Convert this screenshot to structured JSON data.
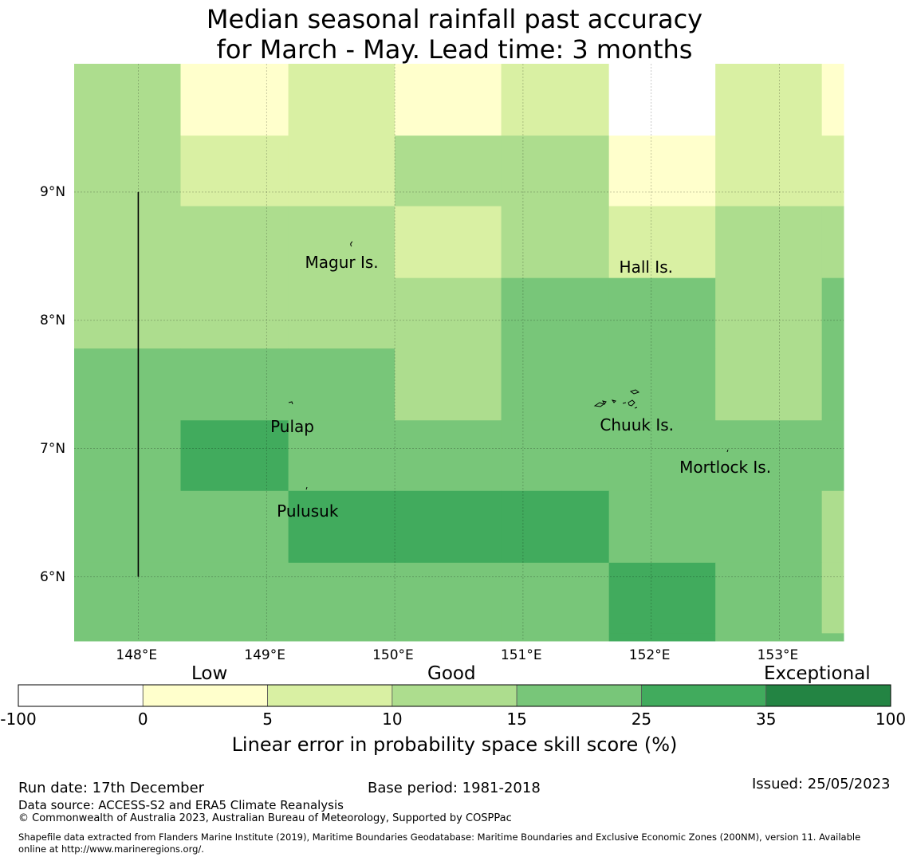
{
  "title": {
    "line1": "Median seasonal rainfall past accuracy",
    "line2": "for March - May. Lead time: 3 months"
  },
  "map": {
    "lon_range": [
      147.5,
      153.5
    ],
    "lat_range": [
      5.5,
      10.0
    ],
    "lon_ticks": [
      {
        "value": 148,
        "label": "148°E"
      },
      {
        "value": 149,
        "label": "149°E"
      },
      {
        "value": 150,
        "label": "150°E"
      },
      {
        "value": 151,
        "label": "151°E"
      },
      {
        "value": 152,
        "label": "152°E"
      },
      {
        "value": 153,
        "label": "153°E"
      }
    ],
    "lat_ticks": [
      {
        "value": 9,
        "label": "9°N"
      },
      {
        "value": 8,
        "label": "8°N"
      },
      {
        "value": 7,
        "label": "7°N"
      },
      {
        "value": 6,
        "label": "6°N"
      }
    ],
    "cells": [
      {
        "lon0": 147.5,
        "lon1": 148.33,
        "lat0": 9.44,
        "lat1": 10.0,
        "cat": 3
      },
      {
        "lon0": 148.33,
        "lon1": 149.17,
        "lat0": 9.44,
        "lat1": 10.0,
        "cat": 1
      },
      {
        "lon0": 149.17,
        "lon1": 150.0,
        "lat0": 9.44,
        "lat1": 10.0,
        "cat": 2
      },
      {
        "lon0": 150.0,
        "lon1": 150.83,
        "lat0": 9.44,
        "lat1": 10.0,
        "cat": 1
      },
      {
        "lon0": 150.83,
        "lon1": 151.67,
        "lat0": 9.44,
        "lat1": 10.0,
        "cat": 2
      },
      {
        "lon0": 151.67,
        "lon1": 152.5,
        "lat0": 9.44,
        "lat1": 10.0,
        "cat": 0
      },
      {
        "lon0": 152.5,
        "lon1": 153.33,
        "lat0": 9.44,
        "lat1": 10.0,
        "cat": 2
      },
      {
        "lon0": 153.33,
        "lon1": 153.5,
        "lat0": 9.44,
        "lat1": 10.0,
        "cat": 1
      },
      {
        "lon0": 147.5,
        "lon1": 148.33,
        "lat0": 8.89,
        "lat1": 9.44,
        "cat": 3
      },
      {
        "lon0": 148.33,
        "lon1": 149.17,
        "lat0": 8.89,
        "lat1": 9.44,
        "cat": 2
      },
      {
        "lon0": 149.17,
        "lon1": 150.0,
        "lat0": 8.89,
        "lat1": 9.44,
        "cat": 2
      },
      {
        "lon0": 150.0,
        "lon1": 150.83,
        "lat0": 8.89,
        "lat1": 9.44,
        "cat": 3
      },
      {
        "lon0": 150.83,
        "lon1": 151.67,
        "lat0": 8.89,
        "lat1": 9.44,
        "cat": 3
      },
      {
        "lon0": 151.67,
        "lon1": 152.5,
        "lat0": 8.89,
        "lat1": 9.44,
        "cat": 1
      },
      {
        "lon0": 152.5,
        "lon1": 153.33,
        "lat0": 8.89,
        "lat1": 9.44,
        "cat": 2
      },
      {
        "lon0": 153.33,
        "lon1": 153.5,
        "lat0": 8.89,
        "lat1": 9.44,
        "cat": 2
      },
      {
        "lon0": 147.5,
        "lon1": 148.33,
        "lat0": 8.33,
        "lat1": 8.89,
        "cat": 3
      },
      {
        "lon0": 148.33,
        "lon1": 149.17,
        "lat0": 8.33,
        "lat1": 8.89,
        "cat": 3
      },
      {
        "lon0": 149.17,
        "lon1": 150.0,
        "lat0": 8.33,
        "lat1": 8.89,
        "cat": 3
      },
      {
        "lon0": 150.0,
        "lon1": 150.83,
        "lat0": 8.33,
        "lat1": 8.89,
        "cat": 2
      },
      {
        "lon0": 150.83,
        "lon1": 151.67,
        "lat0": 8.33,
        "lat1": 8.89,
        "cat": 3
      },
      {
        "lon0": 151.67,
        "lon1": 152.5,
        "lat0": 8.33,
        "lat1": 8.89,
        "cat": 2
      },
      {
        "lon0": 152.5,
        "lon1": 153.33,
        "lat0": 8.33,
        "lat1": 8.89,
        "cat": 3
      },
      {
        "lon0": 153.33,
        "lon1": 153.5,
        "lat0": 8.33,
        "lat1": 8.89,
        "cat": 3
      },
      {
        "lon0": 147.5,
        "lon1": 148.33,
        "lat0": 7.78,
        "lat1": 8.33,
        "cat": 3
      },
      {
        "lon0": 148.33,
        "lon1": 149.17,
        "lat0": 7.78,
        "lat1": 8.33,
        "cat": 3
      },
      {
        "lon0": 149.17,
        "lon1": 150.0,
        "lat0": 7.78,
        "lat1": 8.33,
        "cat": 3
      },
      {
        "lon0": 150.0,
        "lon1": 150.83,
        "lat0": 7.78,
        "lat1": 8.33,
        "cat": 3
      },
      {
        "lon0": 150.83,
        "lon1": 151.67,
        "lat0": 7.78,
        "lat1": 8.33,
        "cat": 4
      },
      {
        "lon0": 151.67,
        "lon1": 152.5,
        "lat0": 7.78,
        "lat1": 8.33,
        "cat": 4
      },
      {
        "lon0": 152.5,
        "lon1": 153.33,
        "lat0": 7.78,
        "lat1": 8.33,
        "cat": 3
      },
      {
        "lon0": 153.33,
        "lon1": 153.5,
        "lat0": 7.78,
        "lat1": 8.33,
        "cat": 4
      },
      {
        "lon0": 147.5,
        "lon1": 148.33,
        "lat0": 7.22,
        "lat1": 7.78,
        "cat": 4
      },
      {
        "lon0": 148.33,
        "lon1": 149.17,
        "lat0": 7.22,
        "lat1": 7.78,
        "cat": 4
      },
      {
        "lon0": 149.17,
        "lon1": 150.0,
        "lat0": 7.22,
        "lat1": 7.78,
        "cat": 4
      },
      {
        "lon0": 150.0,
        "lon1": 150.83,
        "lat0": 7.22,
        "lat1": 7.78,
        "cat": 3
      },
      {
        "lon0": 150.83,
        "lon1": 151.67,
        "lat0": 7.22,
        "lat1": 7.78,
        "cat": 4
      },
      {
        "lon0": 151.67,
        "lon1": 152.5,
        "lat0": 7.22,
        "lat1": 7.78,
        "cat": 4
      },
      {
        "lon0": 152.5,
        "lon1": 153.33,
        "lat0": 7.22,
        "lat1": 7.78,
        "cat": 3
      },
      {
        "lon0": 153.33,
        "lon1": 153.5,
        "lat0": 7.22,
        "lat1": 7.78,
        "cat": 4
      },
      {
        "lon0": 147.5,
        "lon1": 148.33,
        "lat0": 6.67,
        "lat1": 7.22,
        "cat": 4
      },
      {
        "lon0": 148.33,
        "lon1": 149.17,
        "lat0": 6.67,
        "lat1": 7.22,
        "cat": 5
      },
      {
        "lon0": 149.17,
        "lon1": 150.0,
        "lat0": 6.67,
        "lat1": 7.22,
        "cat": 4
      },
      {
        "lon0": 150.0,
        "lon1": 150.83,
        "lat0": 6.67,
        "lat1": 7.22,
        "cat": 4
      },
      {
        "lon0": 150.83,
        "lon1": 151.67,
        "lat0": 6.67,
        "lat1": 7.22,
        "cat": 4
      },
      {
        "lon0": 151.67,
        "lon1": 152.5,
        "lat0": 6.67,
        "lat1": 7.22,
        "cat": 4
      },
      {
        "lon0": 152.5,
        "lon1": 153.33,
        "lat0": 6.67,
        "lat1": 7.22,
        "cat": 4
      },
      {
        "lon0": 153.33,
        "lon1": 153.5,
        "lat0": 6.67,
        "lat1": 7.22,
        "cat": 4
      },
      {
        "lon0": 147.5,
        "lon1": 148.33,
        "lat0": 6.11,
        "lat1": 6.67,
        "cat": 4
      },
      {
        "lon0": 148.33,
        "lon1": 149.17,
        "lat0": 6.11,
        "lat1": 6.67,
        "cat": 4
      },
      {
        "lon0": 149.17,
        "lon1": 150.0,
        "lat0": 6.11,
        "lat1": 6.67,
        "cat": 5
      },
      {
        "lon0": 150.0,
        "lon1": 150.83,
        "lat0": 6.11,
        "lat1": 6.67,
        "cat": 5
      },
      {
        "lon0": 150.83,
        "lon1": 151.67,
        "lat0": 6.11,
        "lat1": 6.67,
        "cat": 5
      },
      {
        "lon0": 151.67,
        "lon1": 152.5,
        "lat0": 6.11,
        "lat1": 6.67,
        "cat": 4
      },
      {
        "lon0": 152.5,
        "lon1": 153.33,
        "lat0": 6.11,
        "lat1": 6.67,
        "cat": 4
      },
      {
        "lon0": 153.33,
        "lon1": 153.5,
        "lat0": 6.11,
        "lat1": 6.67,
        "cat": 3
      },
      {
        "lon0": 147.5,
        "lon1": 148.33,
        "lat0": 5.56,
        "lat1": 6.11,
        "cat": 4
      },
      {
        "lon0": 148.33,
        "lon1": 149.17,
        "lat0": 5.56,
        "lat1": 6.11,
        "cat": 4
      },
      {
        "lon0": 149.17,
        "lon1": 150.0,
        "lat0": 5.56,
        "lat1": 6.11,
        "cat": 4
      },
      {
        "lon0": 150.0,
        "lon1": 150.83,
        "lat0": 5.56,
        "lat1": 6.11,
        "cat": 4
      },
      {
        "lon0": 150.83,
        "lon1": 151.67,
        "lat0": 5.56,
        "lat1": 6.11,
        "cat": 4
      },
      {
        "lon0": 151.67,
        "lon1": 152.5,
        "lat0": 5.56,
        "lat1": 6.11,
        "cat": 5
      },
      {
        "lon0": 152.5,
        "lon1": 153.33,
        "lat0": 5.56,
        "lat1": 6.11,
        "cat": 4
      },
      {
        "lon0": 153.33,
        "lon1": 153.5,
        "lat0": 5.56,
        "lat1": 6.11,
        "cat": 3
      },
      {
        "lon0": 147.5,
        "lon1": 148.33,
        "lat0": 5.5,
        "lat1": 5.56,
        "cat": 4
      },
      {
        "lon0": 148.33,
        "lon1": 149.17,
        "lat0": 5.5,
        "lat1": 5.56,
        "cat": 4
      },
      {
        "lon0": 149.17,
        "lon1": 150.0,
        "lat0": 5.5,
        "lat1": 5.56,
        "cat": 4
      },
      {
        "lon0": 150.0,
        "lon1": 150.83,
        "lat0": 5.5,
        "lat1": 5.56,
        "cat": 4
      },
      {
        "lon0": 150.83,
        "lon1": 151.67,
        "lat0": 5.5,
        "lat1": 5.56,
        "cat": 4
      },
      {
        "lon0": 151.67,
        "lon1": 152.5,
        "lat0": 5.5,
        "lat1": 5.56,
        "cat": 5
      },
      {
        "lon0": 152.5,
        "lon1": 153.33,
        "lat0": 5.5,
        "lat1": 5.56,
        "cat": 4
      },
      {
        "lon0": 153.33,
        "lon1": 153.5,
        "lat0": 5.5,
        "lat1": 5.56,
        "cat": 4
      }
    ],
    "boundary_line": {
      "lon": 148.0,
      "lat_from": 6.0,
      "lat_to": 9.0
    },
    "places": [
      {
        "name": "Magur Is.",
        "lon": 149.67,
        "lat": 8.55,
        "label_lon": 149.3,
        "label_lat": 8.44
      },
      {
        "name": "Hall Is.",
        "lon": 151.97,
        "lat": 8.5,
        "label_lon": 151.75,
        "label_lat": 8.4
      },
      {
        "name": "Pulap",
        "lon": 149.2,
        "lat": 7.37,
        "label_lon": 149.03,
        "label_lat": 7.16
      },
      {
        "name": "Chuuk Is.",
        "lon": 151.85,
        "lat": 7.42,
        "label_lon": 151.6,
        "label_lat": 7.17
      },
      {
        "name": "Mortlock Is.",
        "lon": 152.6,
        "lat": 6.95,
        "label_lon": 152.22,
        "label_lat": 6.84
      },
      {
        "name": "Pulusuk",
        "lon": 149.3,
        "lat": 6.69,
        "label_lon": 149.08,
        "label_lat": 6.5
      }
    ]
  },
  "colorbar": {
    "bounds": [
      "-100",
      "0",
      "5",
      "10",
      "15",
      "25",
      "35",
      "100"
    ],
    "colors": [
      "#ffffff",
      "#ffffcc",
      "#d9f0a3",
      "#addd8e",
      "#78c679",
      "#41ab5d",
      "#238443"
    ],
    "category_words": {
      "low": "Low",
      "good": "Good",
      "exceptional": "Exceptional"
    },
    "label": "Linear error in probability space skill score (%)"
  },
  "footer": {
    "run_date": "Run date: 17th December",
    "base_period": "Base period: 1981-2018",
    "issued": "Issued: 25/05/2023",
    "data_source": "Data source: ACCESS-S2 and ERA5 Climate Reanalysis",
    "copyright": "© Commonwealth of Australia 2023, Australian Bureau of Meteorology, Supported by COSPPac",
    "shapefile_line1": "Shapefile data extracted from Flanders Marine Institute (2019), Maritime Boundaries Geodatabase: Maritime Boundaries and Exclusive Economic Zones (200NM), version 11. Available",
    "shapefile_line2": "online at http://www.marineregions.org/."
  }
}
